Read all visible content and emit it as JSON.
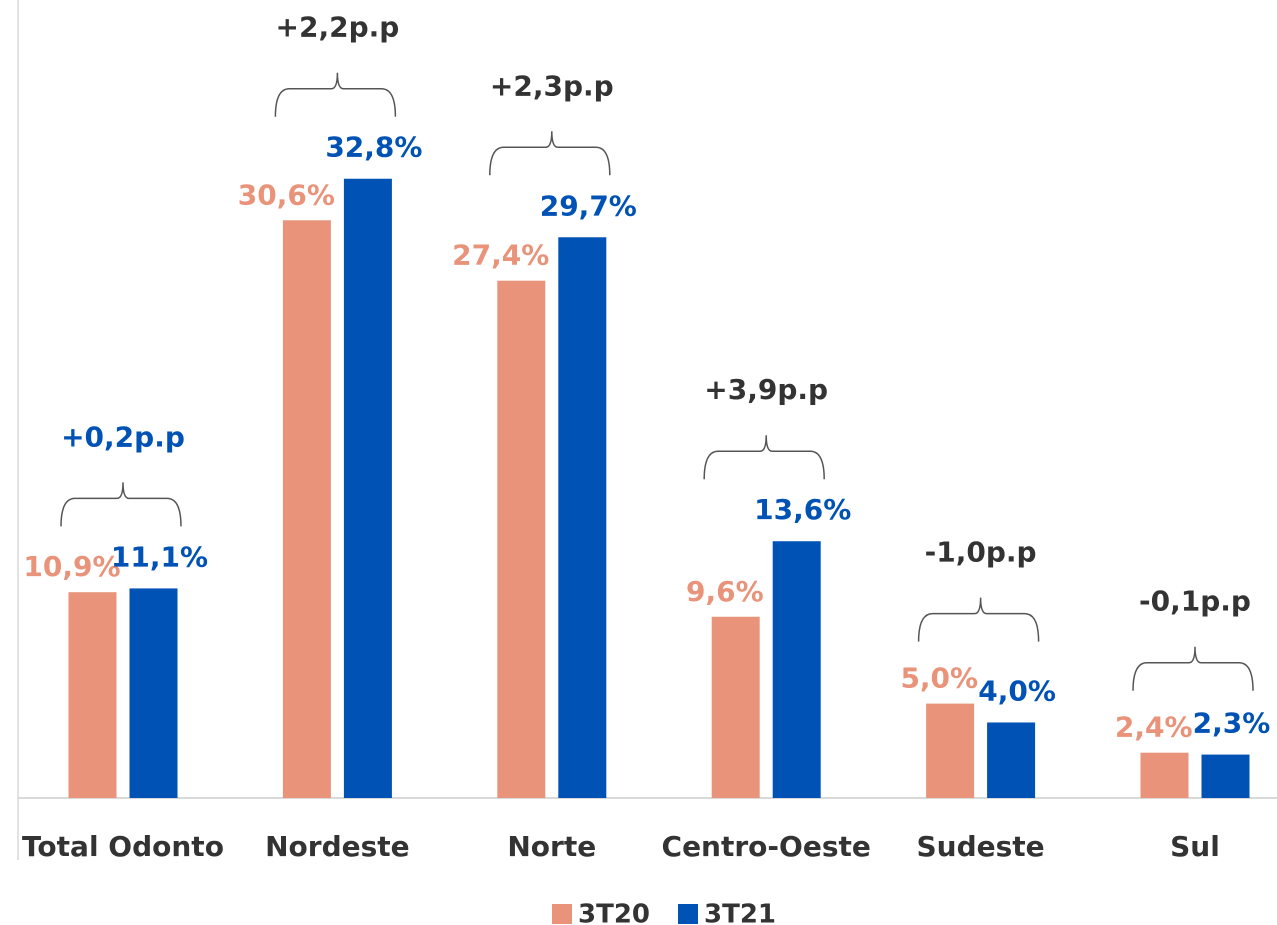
{
  "chart_data": {
    "type": "bar",
    "categories": [
      "Total Odonto",
      "Nordeste",
      "Norte",
      "Centro-Oeste",
      "Sudeste",
      "Sul"
    ],
    "series": [
      {
        "name": "3T20",
        "color": "#E8937A",
        "values": [
          10.9,
          30.6,
          27.4,
          9.6,
          5.0,
          2.4
        ],
        "value_labels": [
          "10,9%",
          "30,6%",
          "27,4%",
          "9,6%",
          "5,0%",
          "2,4%"
        ]
      },
      {
        "name": "3T21",
        "color": "#0052B4",
        "values": [
          11.1,
          32.8,
          29.7,
          13.6,
          4.0,
          2.3
        ],
        "value_labels": [
          "11,1%",
          "32,8%",
          "29,7%",
          "13,6%",
          "4,0%",
          "2,3%"
        ]
      }
    ],
    "annotations": [
      {
        "text": "+0,2p.p",
        "color": "#0052B4"
      },
      {
        "text": "+2,2p.p",
        "color": "#333333"
      },
      {
        "text": "+2,3p.p",
        "color": "#333333"
      },
      {
        "text": "+3,9p.p",
        "color": "#333333"
      },
      {
        "text": "-1,0p.p",
        "color": "#333333"
      },
      {
        "text": "-0,1p.p",
        "color": "#333333"
      }
    ]
  }
}
